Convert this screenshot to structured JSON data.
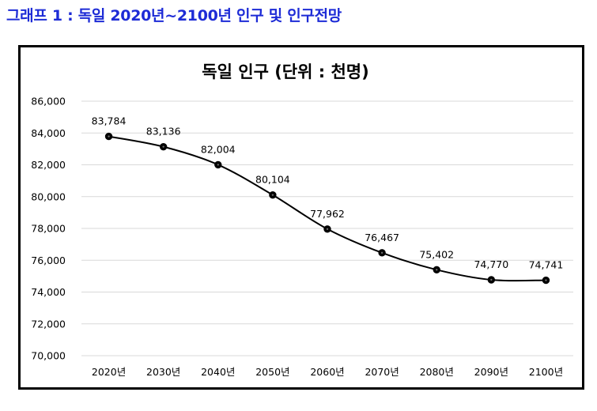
{
  "page": {
    "heading": "그래프 1 : 독일 2020년~2100년 인구 및 인구전망",
    "heading_color": "#1d2bd6"
  },
  "chart_data": {
    "type": "line",
    "title": "독일 인구 (단위 : 천명)",
    "categories": [
      "2020년",
      "2030년",
      "2040년",
      "2050년",
      "2060년",
      "2070년",
      "2080년",
      "2090년",
      "2100년"
    ],
    "series": [
      {
        "values": [
          83784,
          83136,
          82004,
          80104,
          77962,
          76467,
          75402,
          74770,
          74741
        ],
        "data_labels": [
          "83,784",
          "83,136",
          "82,004",
          "80,104",
          "77,962",
          "76,467",
          "75,402",
          "74,770",
          "74,741"
        ],
        "color": "#000000",
        "marker": "circle"
      }
    ],
    "ylim": [
      70000,
      86000
    ],
    "yticks": [
      70000,
      72000,
      74000,
      76000,
      78000,
      80000,
      82000,
      84000,
      86000
    ],
    "ytick_labels": [
      "70,000",
      "72,000",
      "74,000",
      "76,000",
      "78,000",
      "80,000",
      "82,000",
      "84,000",
      "86,000"
    ],
    "xlabel": "",
    "ylabel": "",
    "grid": true,
    "legend": "none",
    "smooth": true
  }
}
